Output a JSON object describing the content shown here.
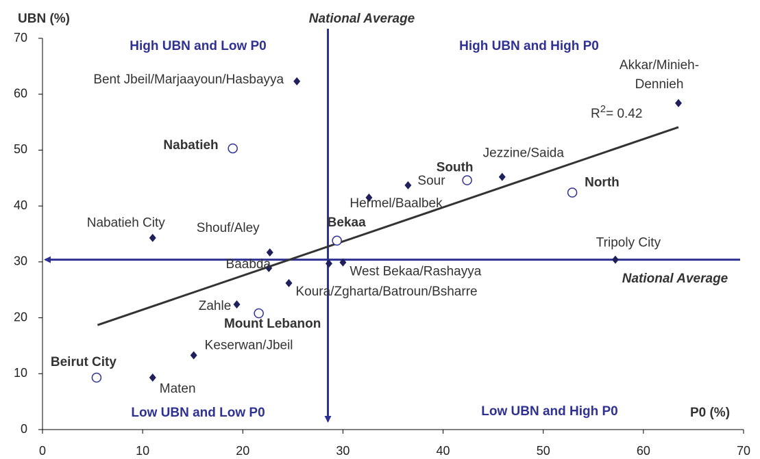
{
  "chart_data": {
    "type": "scatter",
    "x_label": "P0 (%)",
    "y_label": "UBN (%)",
    "xlim": [
      0,
      70
    ],
    "xticks": [
      0,
      10,
      20,
      30,
      40,
      50,
      60,
      70
    ],
    "ylim": [
      0,
      70
    ],
    "yticks": [
      0,
      10,
      20,
      30,
      40,
      50,
      60,
      70
    ],
    "quadrant_labels": [
      "High UBN and Low P0",
      "High UBN and High P0",
      "Low UBN and Low P0",
      "Low UBN and High P0"
    ],
    "national_average": {
      "label": "National Average",
      "x": 28.5,
      "y": 30.4
    },
    "series": [
      {
        "marker": "diamond",
        "color": "#1f1f5c",
        "x": [
          25.4,
          63.5,
          45.9,
          36.5,
          32.6,
          11.0,
          22.7,
          22.6,
          30.0,
          28.6,
          57.2,
          24.6,
          19.4,
          15.1,
          11.0
        ],
        "values": [
          62.3,
          58.4,
          45.2,
          43.7,
          41.5,
          34.3,
          31.7,
          28.9,
          29.9,
          29.7,
          30.4,
          26.2,
          22.4,
          13.3,
          9.3
        ],
        "labels": [
          "Bent Jbeil/Marjaayoun/Hasbayya",
          [
            "Akkar/Minieh-",
            "Dennieh"
          ],
          "Jezzine/Saida",
          "Sour",
          "Hermel/Baalbek",
          "Nabatieh City",
          "Shouf/Aley",
          "Baabda",
          "West Bekaa/Rashayya",
          null,
          "Tripoly City",
          "Koura/Zgharta/Batroun/Bsharre",
          "Zahle",
          "Keserwan/Jbeil",
          "Maten"
        ]
      },
      {
        "marker": "circle",
        "color": "#2e3192",
        "x": [
          19.0,
          42.4,
          52.9,
          29.4,
          21.6,
          5.4
        ],
        "values": [
          50.3,
          44.6,
          42.4,
          33.8,
          20.8,
          9.3
        ],
        "labels": [
          "Nabatieh",
          "South",
          "North",
          "Bekaa",
          "Mount Lebanon",
          "Beirut City"
        ]
      }
    ],
    "trendline": {
      "x": [
        5.5,
        63.5
      ],
      "values": [
        18.7,
        54.1
      ],
      "color": "#333333",
      "annotation": {
        "text": "R",
        "sup": "2",
        "rest": "= 0.42"
      }
    }
  }
}
